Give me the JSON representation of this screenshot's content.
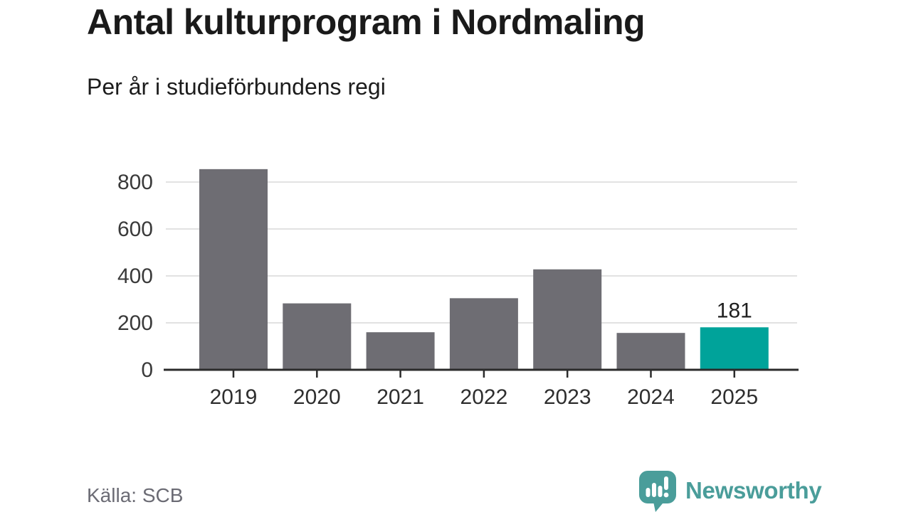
{
  "chart_data": {
    "type": "bar",
    "title": "Antal kulturprogram i Nordmaling",
    "subtitle": "Per år i studieförbundens regi",
    "categories": [
      "2019",
      "2020",
      "2021",
      "2022",
      "2023",
      "2024",
      "2025"
    ],
    "values": [
      855,
      283,
      160,
      305,
      428,
      157,
      181
    ],
    "highlight_index": 6,
    "value_labels": {
      "6": "181"
    },
    "xlabel": "",
    "ylabel": "",
    "yticks": [
      0,
      200,
      400,
      600,
      800
    ],
    "ylim": [
      0,
      880
    ],
    "grid": "horizontal-light",
    "legend": "none",
    "bar_color": "#6e6d73",
    "highlight_color": "#00a39a",
    "axis_color": "#2b2b2b",
    "grid_color": "#e2e2e2",
    "ytick_label_color": "#3a3a3a",
    "xtick_label_color": "#2e2e2e",
    "value_label_color": "#1f1f1f"
  },
  "footer": {
    "source": "Källa: SCB",
    "brand": {
      "name": "Newsworthy",
      "color": "#4a9d9a",
      "icon": "newsworthy-speech-bubble-barchart-icon"
    }
  }
}
